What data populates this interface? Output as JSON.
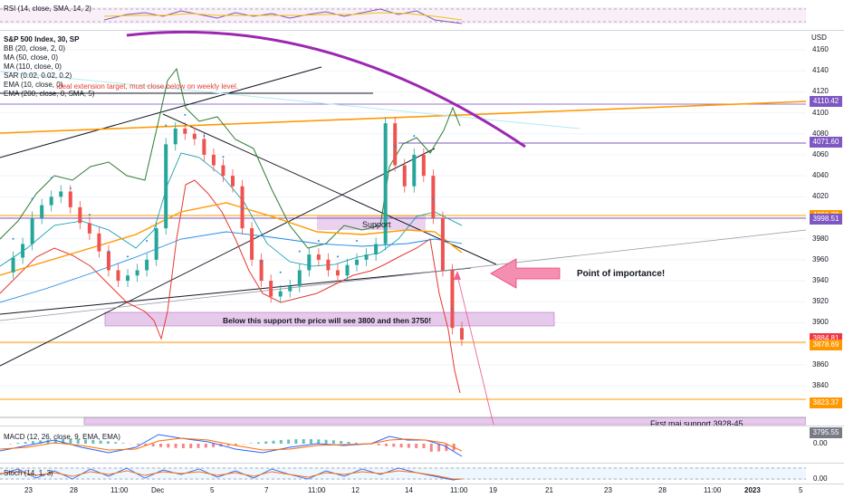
{
  "panes": {
    "rsi_label": "RSI (14, close, SMA, 14, 2)",
    "macd_label": "MACD (12, 26, close, 9, EMA, EMA)",
    "stoch_label": "Stoch (14, 1, 3)",
    "currency": "USD"
  },
  "legend": [
    "S&P 500 Index, 30, SP",
    "BB (20, close, 2, 0)",
    "MA (50, close, 0)",
    "MA (110, close, 0)",
    "SAR (0.02, 0.02, 0.2)",
    "EMA (10, close, 0)",
    "EMA (200, close, 0, SMA, 5)"
  ],
  "annotations": {
    "ideal_target": "Ideal extension target, must close below on weekly level.",
    "support": "Support",
    "below_support": "Below this support the price will see 3800 and then 3750!",
    "point_of_importance": "Point of importance!",
    "first_major_support": "First maj support 3928-45"
  },
  "price_tags": [
    {
      "text": "4110.42",
      "value": 4110.42,
      "color": "#7e57c2"
    },
    {
      "text": "4071.60",
      "value": 4071.6,
      "color": "#7e57c2"
    },
    {
      "text": "4001.79",
      "value": 4001.79,
      "color": "#ff9800"
    },
    {
      "text": "3998.51",
      "value": 3998.51,
      "color": "#7e57c2"
    },
    {
      "text": "3884.81",
      "value": 3884.81,
      "color": "#f23645"
    },
    {
      "text": "3878.69",
      "value": 3878.69,
      "color": "#ff9800"
    },
    {
      "text": "3823.37",
      "value": 3823.37,
      "color": "#ff9800"
    },
    {
      "text": "3795.55",
      "value": 3795.55,
      "color": "#787b86"
    }
  ],
  "macd_zero": "0.00",
  "stoch_zero": "0.00",
  "chart_data": {
    "type": "line",
    "title": "S&P 500 Index, 30, SP",
    "ylabel": "USD",
    "ylim": [
      3780,
      4170
    ],
    "y_ticks": [
      4160,
      4140,
      4120,
      4100,
      4080,
      4060,
      4040,
      4020,
      4000,
      3980,
      3960,
      3940,
      3920,
      3900,
      3880,
      3860,
      3840
    ],
    "x_ticks": [
      "23",
      "28",
      "11:00",
      "Dec",
      "5",
      "7",
      "11:00",
      "12",
      "14",
      "11:00",
      "19",
      "21",
      "23",
      "28",
      "11:00",
      "2023",
      "5"
    ],
    "series": [
      {
        "name": "S&P 500 Index",
        "values": [
          3948,
          3962,
          3975,
          4000,
          4012,
          4020,
          4025,
          4010,
          3995,
          3985,
          3968,
          3950,
          3940,
          3945,
          3950,
          3960,
          3990,
          4070,
          4085,
          4080,
          4075,
          4060,
          4050,
          4040,
          4030,
          3990,
          3960,
          3940,
          3925,
          3930,
          3935,
          3950,
          3965,
          3960,
          3950,
          3945,
          3955,
          3960,
          3965,
          3975,
          4090,
          4050,
          4030,
          4060,
          4040,
          4000,
          3950,
          3895,
          3884
        ]
      }
    ],
    "levels": [
      4110.42,
      4071.6,
      4001.79,
      3998.51,
      3878.69,
      3823.37,
      3795.55
    ]
  }
}
